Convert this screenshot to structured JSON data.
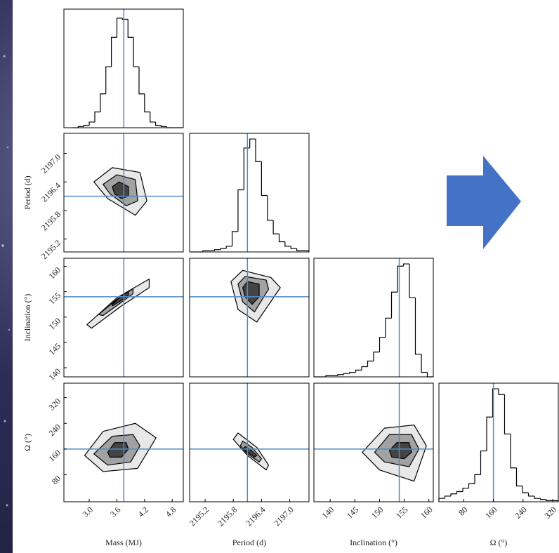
{
  "chart_data": [
    {
      "type": "histogram",
      "xlim": [
        2.45,
        5.04
      ],
      "ylim": [
        0,
        105
      ],
      "bins": [
        2.64,
        2.76,
        2.88,
        3.0,
        3.12,
        3.24,
        3.36,
        3.48,
        3.6,
        3.72,
        3.84,
        3.96,
        4.08,
        4.2,
        4.32,
        4.44,
        4.56,
        4.68,
        4.8,
        4.92,
        5.04
      ],
      "values": [
        0,
        1,
        2,
        5,
        14,
        30,
        54,
        80,
        97,
        96,
        80,
        54,
        30,
        14,
        5,
        2,
        1,
        0,
        0,
        0
      ],
      "truth": 3.75
    },
    {
      "type": "contour",
      "xlim": [
        2.45,
        5.04
      ],
      "ylim": [
        2194.93,
        2197.42
      ],
      "yticks": [
        2195.2,
        2195.8,
        2196.4,
        {
          "value": 2197,
          "label": "2197.0"
        }
      ],
      "ylabel": "Period (d)",
      "contours": [
        {
          "x": [
            3.1,
            3.5,
            4.1,
            4.25,
            4.0,
            3.4
          ],
          "y": [
            2196.4,
            2196.7,
            2196.6,
            2196.0,
            2195.7,
            2196.05
          ]
        },
        {
          "x": [
            3.3,
            3.6,
            4.0,
            4.05,
            3.8,
            3.45
          ],
          "y": [
            2196.35,
            2196.55,
            2196.45,
            2196.0,
            2195.9,
            2196.15
          ]
        },
        {
          "x": [
            3.5,
            3.65,
            3.85,
            3.85,
            3.7,
            3.55
          ],
          "y": [
            2196.3,
            2196.4,
            2196.3,
            2196.1,
            2196.05,
            2196.15
          ]
        }
      ],
      "truth": [
        3.75,
        2196.1
      ]
    },
    {
      "type": "histogram",
      "xlim": [
        2194.87,
        2197.41
      ],
      "ylim": [
        0,
        105
      ],
      "bins": [
        2194.9,
        2195.025,
        2195.15,
        2195.275,
        2195.4,
        2195.525,
        2195.65,
        2195.775,
        2195.9,
        2196.025,
        2196.15,
        2196.275,
        2196.4,
        2196.525,
        2196.65,
        2196.775,
        2196.9,
        2197.025,
        2197.15,
        2197.275,
        2197.4
      ],
      "values": [
        0,
        0,
        1,
        1,
        2,
        3,
        5,
        18,
        55,
        92,
        100,
        80,
        50,
        28,
        16,
        9,
        5,
        3,
        1,
        1
      ],
      "truth": 2196.1
    },
    {
      "type": "contour",
      "xlim": [
        2.45,
        5.04
      ],
      "ylim": [
        138.2,
        161.6
      ],
      "yticks": [
        140,
        145,
        150,
        155,
        160
      ],
      "ylabel": "Inclination (°)",
      "contours": [
        {
          "x": [
            2.95,
            3.6,
            4.3,
            4.3,
            3.7,
            3.05
          ],
          "y": [
            148.5,
            153.8,
            157.5,
            155.8,
            152.2,
            147.8
          ]
        },
        {
          "x": [
            3.2,
            3.6,
            3.95,
            3.95,
            3.65,
            3.3
          ],
          "y": [
            150.5,
            153.5,
            155.6,
            154.6,
            152.6,
            150.3
          ]
        },
        {
          "x": [
            3.5,
            3.7,
            3.85,
            3.85,
            3.7,
            3.5
          ],
          "y": [
            152.5,
            154.2,
            155,
            154.3,
            153.3,
            152.2
          ]
        }
      ],
      "truth": [
        3.75,
        154
      ]
    },
    {
      "type": "contour",
      "xlim": [
        2194.87,
        2197.41
      ],
      "ylim": [
        138.2,
        161.6
      ],
      "contours": [
        {
          "x": [
            2195.75,
            2196.0,
            2196.6,
            2196.8,
            2196.3,
            2195.9
          ],
          "y": [
            157,
            159.2,
            157.8,
            155.8,
            149,
            151.5
          ]
        },
        {
          "x": [
            2195.9,
            2196.05,
            2196.5,
            2196.55,
            2196.25,
            2196.0
          ],
          "y": [
            156.5,
            158,
            157.3,
            155.5,
            151,
            153
          ]
        },
        {
          "x": [
            2196.0,
            2196.1,
            2196.35,
            2196.35,
            2196.2,
            2196.05
          ],
          "y": [
            155.8,
            157,
            156.5,
            154,
            152.5,
            154
          ]
        }
      ],
      "truth": [
        2196.1,
        154
      ]
    },
    {
      "type": "histogram",
      "xlim": [
        136.7,
        160.9
      ],
      "ylim": [
        0,
        105
      ],
      "bins": [
        136.7,
        137.91,
        139.12,
        140.33,
        141.54,
        142.75,
        143.96,
        145.17,
        146.38,
        147.59,
        148.8,
        150.01,
        151.22,
        152.43,
        153.64,
        154.85,
        156.06,
        157.27,
        158.48,
        159.69,
        160.9
      ],
      "values": [
        0,
        0,
        1,
        1,
        2,
        3,
        4,
        6,
        9,
        14,
        22,
        35,
        52,
        75,
        98,
        100,
        70,
        20,
        4,
        0
      ],
      "truth": 154
    },
    {
      "type": "contour",
      "xlim": [
        2.45,
        5.04
      ],
      "ylim": [
        -4,
        365
      ],
      "xticks": [
        {
          "value": 3,
          "label": "3.0"
        },
        3.6,
        4.2,
        4.8
      ],
      "xlabel": "Mass (MJ)",
      "yticks": [
        80,
        160,
        240,
        320
      ],
      "ylabel": "Ω (°)",
      "contours": [
        {
          "x": [
            2.9,
            3.3,
            4.0,
            4.45,
            4.05,
            3.3
          ],
          "y": [
            140,
            215,
            240,
            195,
            100,
            90
          ]
        },
        {
          "x": [
            3.1,
            3.5,
            3.95,
            4.1,
            3.9,
            3.4
          ],
          "y": [
            145,
            200,
            205,
            170,
            120,
            110
          ]
        },
        {
          "x": [
            3.4,
            3.55,
            3.8,
            3.85,
            3.7,
            3.45
          ],
          "y": [
            150,
            180,
            180,
            160,
            135,
            135
          ]
        }
      ],
      "truth": [
        3.75,
        160
      ]
    },
    {
      "type": "contour",
      "xlim": [
        2194.87,
        2197.41
      ],
      "ylim": [
        -4,
        365
      ],
      "xticks": [
        2195.2,
        2195.8,
        2196.4,
        {
          "value": 2197,
          "label": "2197.0"
        }
      ],
      "xlabel": "Period (d)",
      "contours": [
        {
          "x": [
            2195.9,
            2196.3,
            2196.55,
            2196.5,
            2196.1,
            2195.8
          ],
          "y": [
            210,
            165,
            110,
            95,
            140,
            190
          ]
        },
        {
          "x": [
            2196.0,
            2196.2,
            2196.4,
            2196.35,
            2196.1,
            2195.95
          ],
          "y": [
            185,
            165,
            130,
            120,
            145,
            170
          ]
        },
        {
          "x": [
            2196.05,
            2196.15,
            2196.3,
            2196.25,
            2196.1,
            2196.0
          ],
          "y": [
            168,
            160,
            140,
            135,
            150,
            160
          ]
        }
      ],
      "truth": [
        2196.1,
        160
      ]
    },
    {
      "type": "contour",
      "xlim": [
        136.7,
        160.9
      ],
      "ylim": [
        -4,
        365
      ],
      "xticks": [
        140,
        145,
        150,
        155,
        160
      ],
      "xlabel": "Inclination (°)",
      "contours": [
        {
          "x": [
            146.5,
            151,
            157,
            159.5,
            157,
            150
          ],
          "y": [
            150,
            225,
            235,
            170,
            60,
            95
          ]
        },
        {
          "x": [
            149,
            152,
            156.5,
            158,
            156,
            151
          ],
          "y": [
            150,
            205,
            205,
            160,
            105,
            120
          ]
        },
        {
          "x": [
            152,
            153.5,
            156,
            156.5,
            155,
            152.5
          ],
          "y": [
            155,
            180,
            180,
            150,
            130,
            135
          ]
        }
      ],
      "truth": [
        154,
        160
      ]
    },
    {
      "type": "histogram",
      "xlim": [
        13,
        335
      ],
      "ylim": [
        0,
        105
      ],
      "xticks": [
        80,
        160,
        240,
        320
      ],
      "xlabel": "Ω (°)",
      "bins": [
        13,
        29.1,
        45.2,
        61.3,
        77.4,
        93.5,
        109.6,
        125.7,
        141.8,
        157.9,
        174,
        190.1,
        206.2,
        222.3,
        238.4,
        254.5,
        270.6,
        286.7,
        302.8,
        318.9,
        335
      ],
      "values": [
        3,
        5,
        7,
        9,
        12,
        16,
        24,
        45,
        75,
        100,
        95,
        60,
        30,
        14,
        8,
        5,
        3,
        2,
        1,
        1
      ],
      "truth": 160
    }
  ]
}
